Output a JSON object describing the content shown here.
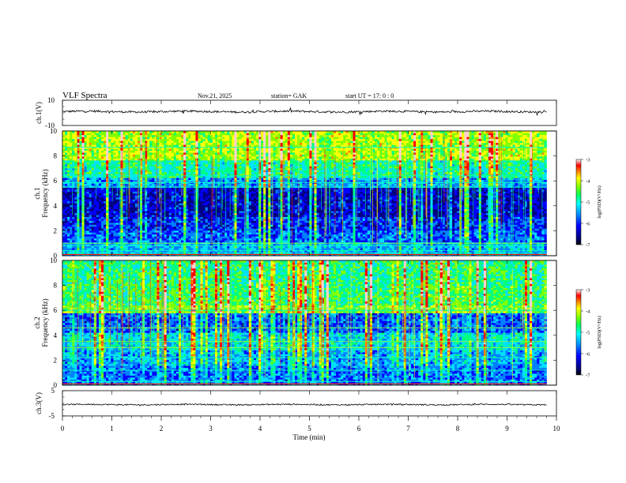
{
  "header": {
    "title": "VLF  Spectra",
    "date": "Nov.21, 2025",
    "station": "station= GAK",
    "start_ut": "start  UT  =   17: 0   : 0"
  },
  "chart_data": [
    {
      "id": "ch1-waveform",
      "type": "line",
      "ylabel": "ch.1(V)",
      "ylim": [
        -10,
        10
      ],
      "yticks": [
        {
          "v": 10,
          "label": "10"
        },
        {
          "v": -10,
          "label": "-10"
        }
      ],
      "xlim": [
        0,
        10
      ],
      "baseline": 1.0,
      "noise_amplitude": 0.8,
      "spike_amplitude": 2.0
    },
    {
      "id": "ch1-spectrogram",
      "type": "heatmap",
      "ylabel_line1": "ch.1",
      "ylabel_line2": "Frequency  (kHz)",
      "ylim": [
        0,
        10
      ],
      "yticks": [
        0,
        2,
        4,
        6,
        8,
        10
      ],
      "xlim": [
        0,
        10
      ],
      "data_extent_min": 9.8,
      "colorbar": {
        "label": "log(PSD)(V²/Hz)",
        "min": -7,
        "max": -3,
        "ticks": [
          -3,
          -4,
          -5,
          -6,
          -7
        ]
      },
      "bands": [
        {
          "from": 0.0,
          "to": 1.0,
          "level": 0.3
        },
        {
          "from": 1.0,
          "to": 2.0,
          "level": 0.22
        },
        {
          "from": 2.0,
          "to": 3.0,
          "level": 0.17
        },
        {
          "from": 3.0,
          "to": 5.4,
          "level": 0.1
        },
        {
          "from": 5.4,
          "to": 6.2,
          "level": 0.28
        },
        {
          "from": 6.2,
          "to": 7.6,
          "level": 0.42
        },
        {
          "from": 7.6,
          "to": 10.0,
          "level": 0.58
        }
      ],
      "lines_khz": [
        0.2,
        0.4,
        0.8,
        1.0,
        5.5,
        5.85,
        6.4,
        8.7
      ]
    },
    {
      "id": "ch2-spectrogram",
      "type": "heatmap",
      "ylabel_line1": "ch.2",
      "ylabel_line2": "Frequency  (kHz)",
      "ylim": [
        0,
        10
      ],
      "yticks": [
        0,
        2,
        4,
        6,
        8,
        10
      ],
      "xlim": [
        0,
        10
      ],
      "data_extent_min": 9.8,
      "colorbar": {
        "label": "log(PSD)(V²/Hz)",
        "min": -7,
        "max": -3,
        "ticks": [
          -3,
          -4,
          -5,
          -6,
          -7
        ]
      },
      "bands": [
        {
          "from": 0.0,
          "to": 1.5,
          "level": 0.24
        },
        {
          "from": 1.5,
          "to": 2.8,
          "level": 0.3
        },
        {
          "from": 2.8,
          "to": 4.2,
          "level": 0.36
        },
        {
          "from": 4.2,
          "to": 5.7,
          "level": 0.22
        },
        {
          "from": 5.7,
          "to": 6.3,
          "level": 0.55
        },
        {
          "from": 6.3,
          "to": 8.0,
          "level": 0.48
        },
        {
          "from": 8.0,
          "to": 10.0,
          "level": 0.45
        }
      ],
      "lines_khz": [
        0.3,
        1.2,
        2.2,
        3.0,
        3.5,
        4.6,
        6.0,
        6.2
      ]
    },
    {
      "id": "ch3-waveform",
      "type": "line",
      "ylabel": "ch.3(V)",
      "ylim": [
        -5,
        5
      ],
      "yticks": [
        {
          "v": 5,
          "label": "5"
        },
        {
          "v": -5,
          "label": "-5"
        }
      ],
      "xlim": [
        0,
        10
      ],
      "baseline": -0.5,
      "noise_amplitude": 0.25,
      "spike_amplitude": 0.3
    }
  ],
  "xaxis": {
    "label": "Time  (min)",
    "ticks": [
      0,
      1,
      2,
      3,
      4,
      5,
      6,
      7,
      8,
      9,
      10
    ]
  },
  "colors": {
    "scale": [
      "#000080",
      "#0000ff",
      "#0080ff",
      "#00e0ff",
      "#00ff80",
      "#80ff00",
      "#ffff00",
      "#ff8000",
      "#ff0000",
      "#ffd0d0"
    ]
  }
}
